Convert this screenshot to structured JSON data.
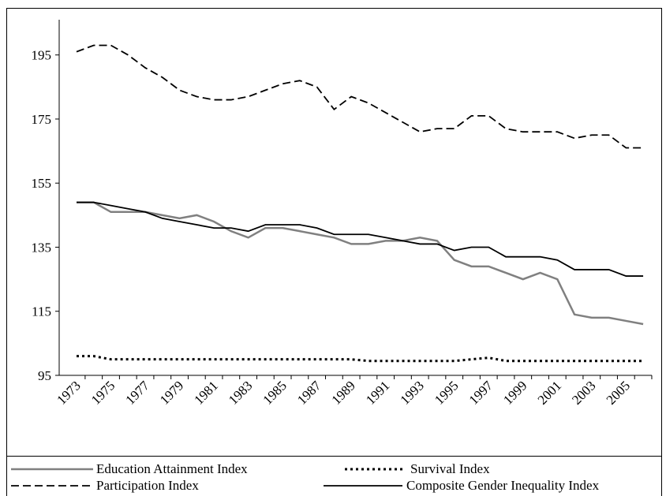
{
  "chart_data": {
    "type": "line",
    "categories": [
      "1973",
      null,
      "1975",
      null,
      "1977",
      null,
      "1979",
      null,
      "1981",
      null,
      "1983",
      null,
      "1985",
      null,
      "1987",
      null,
      "1989",
      null,
      "1991",
      null,
      "1993",
      null,
      "1995",
      null,
      "1997",
      null,
      "1999",
      null,
      "2001",
      null,
      "2003",
      null,
      "2005",
      null
    ],
    "series": [
      {
        "name": "Education Attainment Index",
        "color": "#808080",
        "style": "solid",
        "values": [
          149,
          149,
          146,
          146,
          146,
          145,
          144,
          145,
          143,
          140,
          138,
          141,
          141,
          140,
          139,
          138,
          136,
          136,
          137,
          137,
          138,
          137,
          131,
          129,
          129,
          127,
          125,
          127,
          125,
          114,
          113,
          113,
          112,
          111
        ]
      },
      {
        "name": "Survival Index",
        "color": "#000000",
        "style": "dotted",
        "values": [
          101,
          101,
          100,
          100,
          100,
          100,
          100,
          100,
          100,
          100,
          100,
          100,
          100,
          100,
          100,
          100,
          100,
          99.5,
          99.5,
          99.5,
          99.5,
          99.5,
          99.5,
          100,
          100.5,
          99.5,
          99.5,
          99.5,
          99.5,
          99.5,
          99.5,
          99.5,
          99.5,
          99.5
        ]
      },
      {
        "name": "Participation Index",
        "color": "#000000",
        "style": "dashed",
        "values": [
          196,
          198,
          198,
          195,
          191,
          188,
          184,
          182,
          181,
          181,
          182,
          184,
          186,
          187,
          185,
          178,
          182,
          180,
          177,
          174,
          171,
          172,
          172,
          176,
          176,
          172,
          171,
          171,
          171,
          169,
          170,
          170,
          166,
          166
        ]
      },
      {
        "name": "Composite Gender Inequality Index",
        "color": "#000000",
        "style": "solid",
        "values": [
          149,
          149,
          148,
          147,
          146,
          144,
          143,
          142,
          141,
          141,
          140,
          142,
          142,
          142,
          141,
          139,
          139,
          139,
          138,
          137,
          136,
          136,
          134,
          135,
          135,
          132,
          132,
          132,
          131,
          128,
          128,
          128,
          126,
          126
        ]
      }
    ],
    "ylim": [
      95,
      206
    ],
    "yticks": [
      95,
      115,
      135,
      155,
      175,
      195
    ],
    "grid": false,
    "legend": "bottom"
  }
}
